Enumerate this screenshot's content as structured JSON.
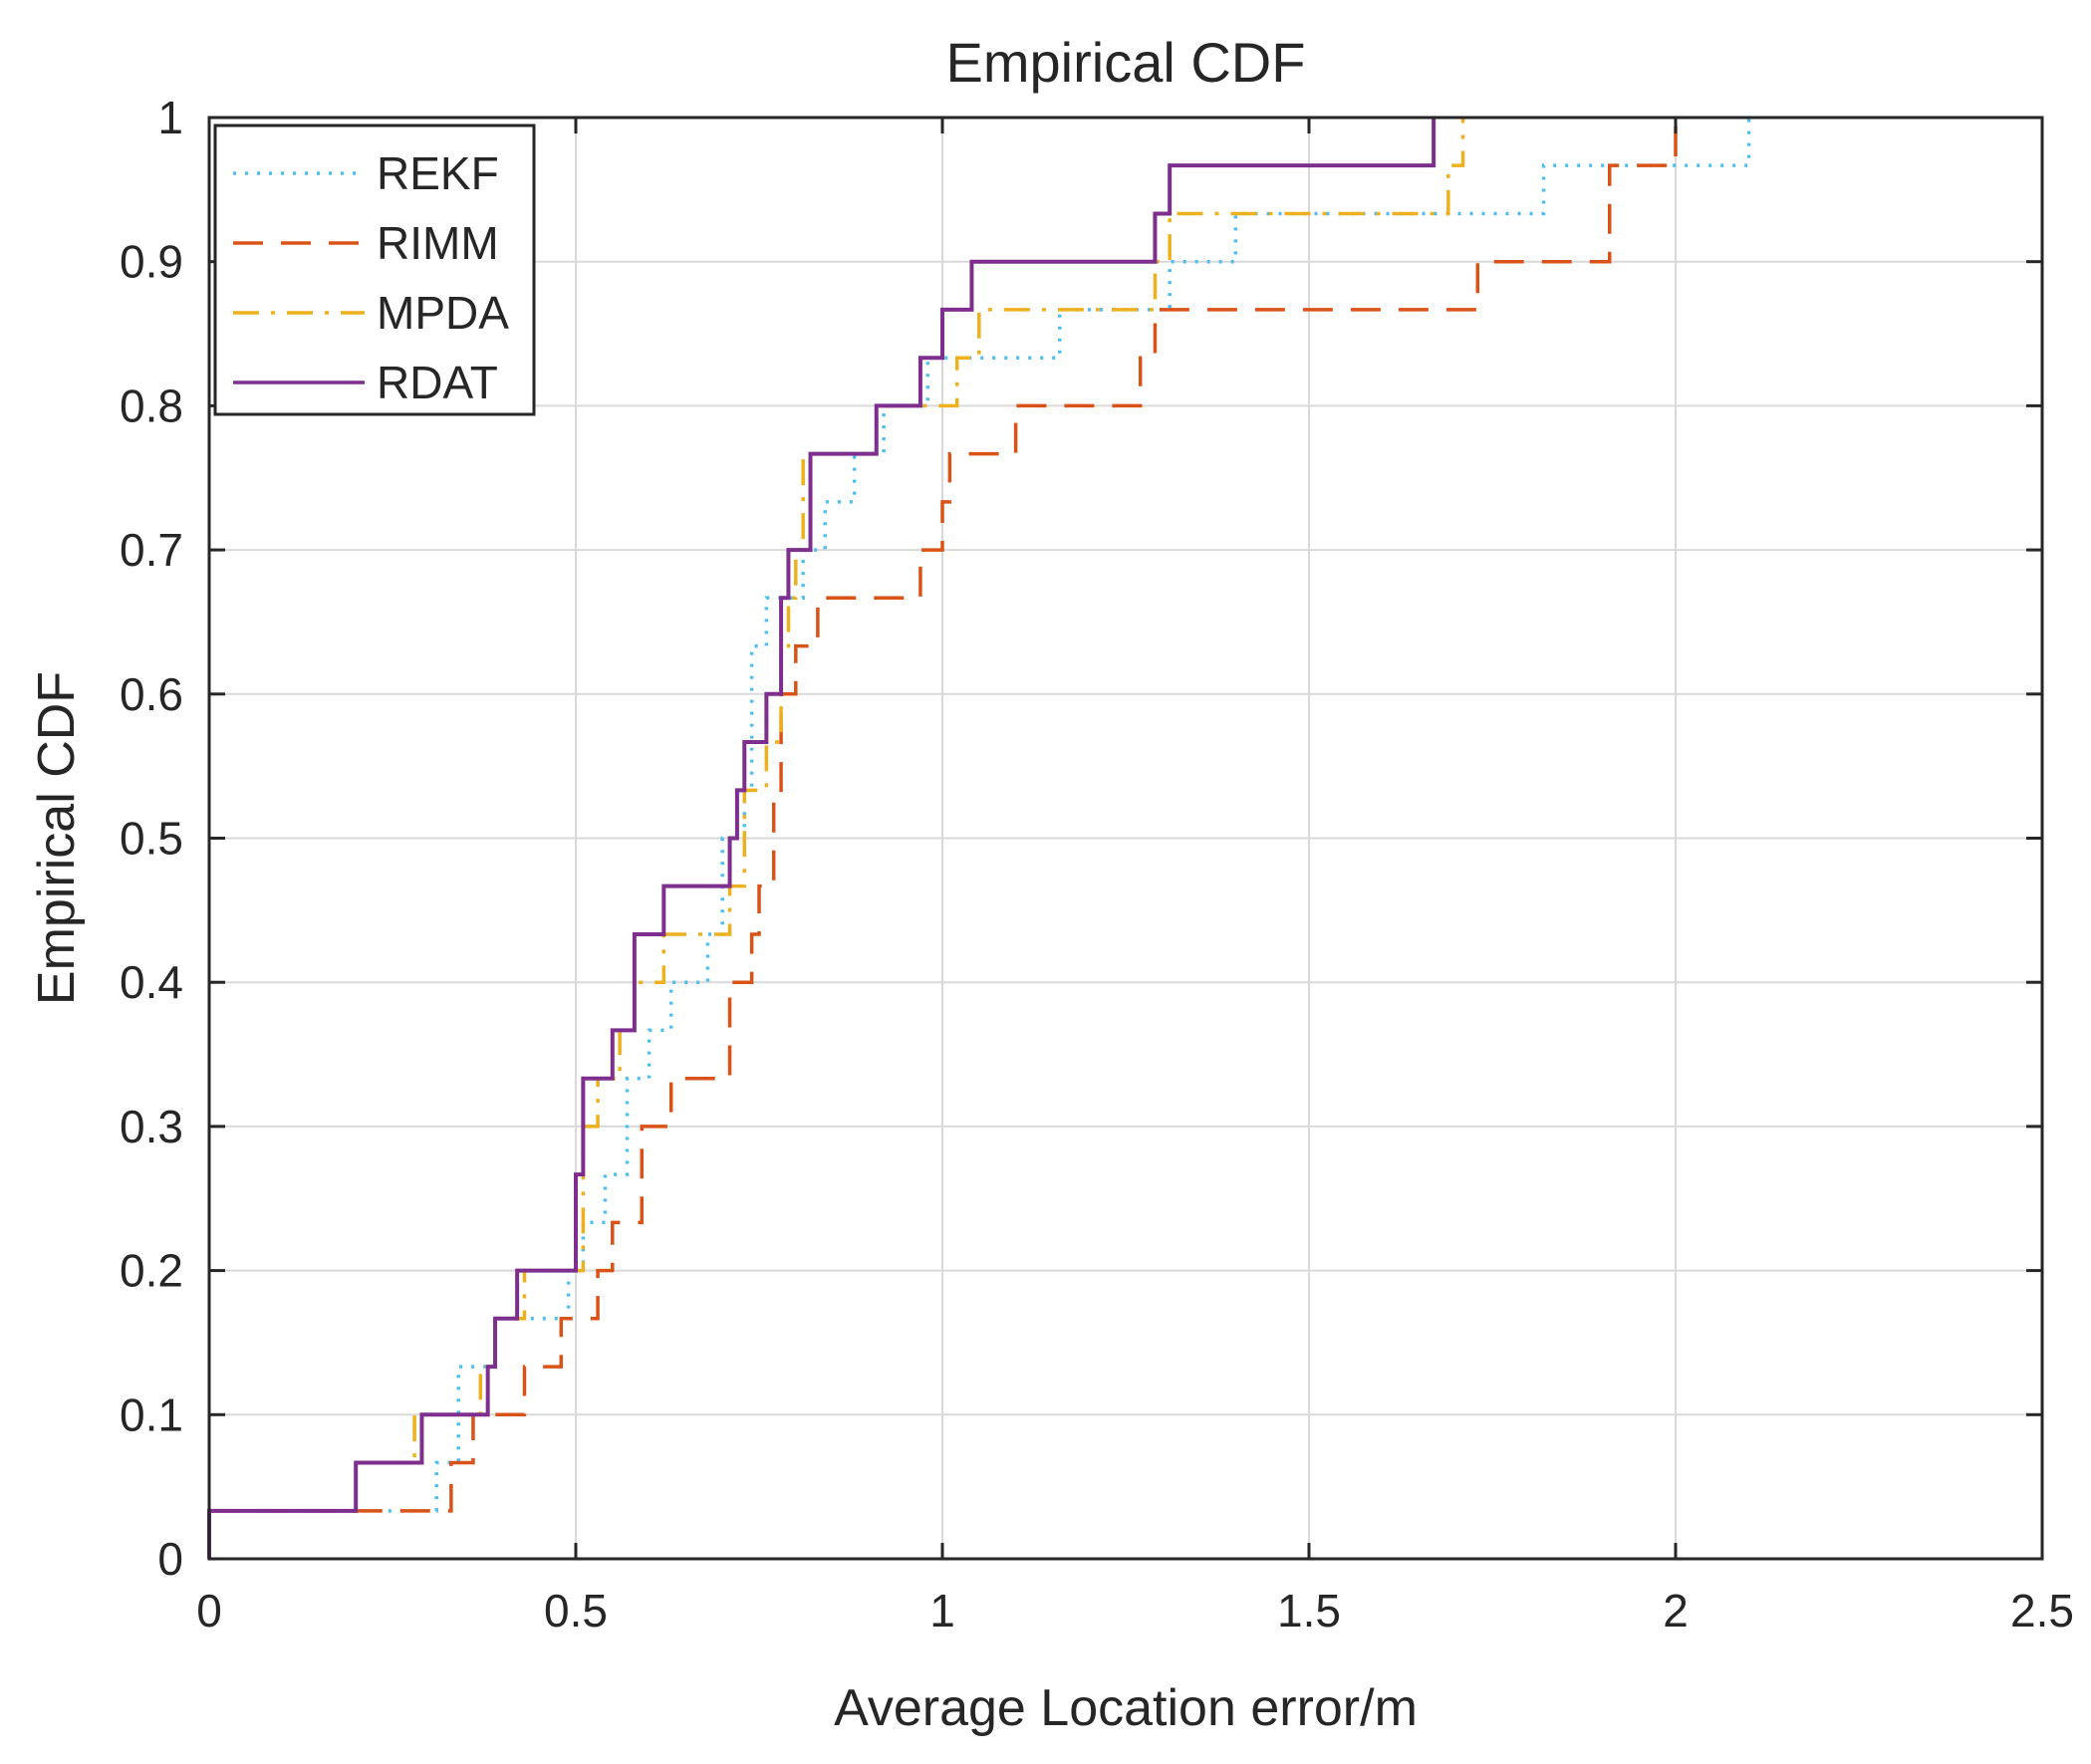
{
  "chart_data": {
    "type": "line",
    "subtype": "empirical-cdf-step",
    "title": "Empirical CDF",
    "xlabel": "Average Location error/m",
    "ylabel": "Empirical CDF",
    "xlim": [
      0,
      2.5
    ],
    "ylim": [
      0,
      1
    ],
    "x_ticks": [
      0,
      0.5,
      1,
      1.5,
      2,
      2.5
    ],
    "x_tick_labels": [
      "0",
      "0.5",
      "1",
      "1.5",
      "2",
      "2.5"
    ],
    "y_ticks": [
      0,
      0.1,
      0.2,
      0.3,
      0.4,
      0.5,
      0.6,
      0.7,
      0.8,
      0.9,
      1
    ],
    "y_tick_labels": [
      "0",
      "0.1",
      "0.2",
      "0.3",
      "0.4",
      "0.5",
      "0.6",
      "0.7",
      "0.8",
      "0.9",
      "1"
    ],
    "grid": true,
    "legend_position": "top-left",
    "series": [
      {
        "name": "REKF",
        "color": "#4DBEEE",
        "line_style": "dotted",
        "x": [
          0,
          0.31,
          0.34,
          0.39,
          0.43,
          0.49,
          0.51,
          0.54,
          0.57,
          0.6,
          0.63,
          0.68,
          0.7,
          0.73,
          0.74,
          0.76,
          0.78,
          0.81,
          0.84,
          0.88,
          0.92,
          0.98,
          1.02,
          1.16,
          1.29,
          1.31,
          1.4,
          1.82,
          2.1
        ],
        "y": [
          0.0333,
          0.0667,
          0.1333,
          0.1667,
          0.1667,
          0.2,
          0.2333,
          0.2667,
          0.3333,
          0.3667,
          0.4,
          0.4333,
          0.5,
          0.5333,
          0.6333,
          0.6667,
          0.6667,
          0.7,
          0.7333,
          0.7667,
          0.8,
          0.8333,
          0.8333,
          0.8667,
          0.8667,
          0.9,
          0.9333,
          0.9667,
          1.0
        ]
      },
      {
        "name": "RIMM",
        "color": "#D95319",
        "line_style": "dashed",
        "x": [
          0,
          0.27,
          0.33,
          0.36,
          0.43,
          0.48,
          0.53,
          0.55,
          0.59,
          0.63,
          0.7,
          0.71,
          0.74,
          0.75,
          0.77,
          0.78,
          0.8,
          0.83,
          0.9,
          0.97,
          1.0,
          1.01,
          1.04,
          1.1,
          1.19,
          1.27,
          1.29,
          1.44,
          1.73,
          1.91,
          2.0
        ],
        "y": [
          0.0333,
          0.0333,
          0.0667,
          0.1,
          0.1333,
          0.1667,
          0.2,
          0.2333,
          0.3,
          0.3333,
          0.3333,
          0.4,
          0.4333,
          0.4667,
          0.5333,
          0.6,
          0.6333,
          0.6667,
          0.6667,
          0.7,
          0.7333,
          0.7667,
          0.7667,
          0.8,
          0.8,
          0.8333,
          0.8667,
          0.8667,
          0.9,
          0.9667,
          1.0
        ]
      },
      {
        "name": "MPDA",
        "color": "#EDB120",
        "line_style": "dashdot",
        "x": [
          0,
          0.2,
          0.28,
          0.37,
          0.39,
          0.43,
          0.51,
          0.53,
          0.56,
          0.58,
          0.62,
          0.71,
          0.73,
          0.76,
          0.78,
          0.79,
          0.8,
          0.81,
          0.91,
          0.97,
          1.0,
          1.02,
          1.05,
          1.29,
          1.31,
          1.69,
          1.71
        ],
        "y": [
          0.0333,
          0.0667,
          0.1,
          0.1333,
          0.1667,
          0.2,
          0.3,
          0.3333,
          0.3667,
          0.4,
          0.4333,
          0.4667,
          0.5333,
          0.5667,
          0.6333,
          0.6667,
          0.7,
          0.7667,
          0.8,
          0.8,
          0.8,
          0.8333,
          0.8667,
          0.9,
          0.9333,
          0.9667,
          1.0
        ]
      },
      {
        "name": "RDAT",
        "color": "#7E2F8E",
        "line_style": "solid",
        "x": [
          0,
          0.2,
          0.29,
          0.38,
          0.39,
          0.42,
          0.5,
          0.51,
          0.55,
          0.58,
          0.62,
          0.71,
          0.72,
          0.73,
          0.76,
          0.78,
          0.79,
          0.82,
          0.91,
          0.97,
          0.99,
          1.0,
          1.04,
          1.29,
          1.31,
          1.67
        ],
        "y": [
          0.0333,
          0.0667,
          0.1,
          0.1333,
          0.1667,
          0.2,
          0.2667,
          0.3333,
          0.3667,
          0.4333,
          0.4667,
          0.5,
          0.5333,
          0.5667,
          0.6,
          0.6667,
          0.7,
          0.7667,
          0.8,
          0.8333,
          0.8333,
          0.8667,
          0.9,
          0.9333,
          0.9667,
          1.0
        ]
      }
    ]
  }
}
